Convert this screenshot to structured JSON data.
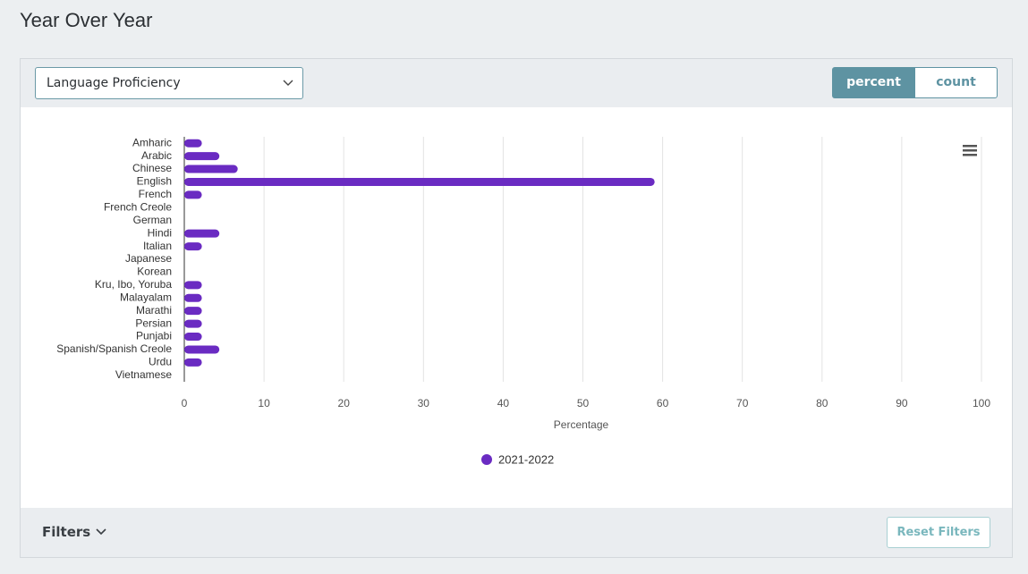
{
  "page": {
    "title": "Year Over Year",
    "dropdown": "Language Proficiency",
    "toggle": [
      "percent",
      "count"
    ],
    "filters": "Filters",
    "reset": "Reset Filters"
  },
  "chart_data": {
    "type": "bar",
    "orientation": "horizontal",
    "x_label": "Percentage",
    "categories": [
      "Amharic",
      "Arabic",
      "Chinese",
      "English",
      "French",
      "French Creole",
      "German",
      "Hindi",
      "Italian",
      "Japanese",
      "Korean",
      "Kru, Ibo, Yoruba",
      "Malayalam",
      "Marathi",
      "Persian",
      "Punjabi",
      "Spanish/Spanish Creole",
      "Urdu",
      "Vietnamese"
    ],
    "series": [
      {
        "name": "2021-2022",
        "color": "#6a2bc2",
        "values": [
          2.2,
          4.4,
          6.7,
          59,
          2.2,
          0,
          0,
          4.4,
          2.2,
          0,
          0,
          2.2,
          2.2,
          2.2,
          2.2,
          2.2,
          4.4,
          2.2,
          0
        ]
      }
    ],
    "xlim": [
      0,
      100
    ],
    "xticks": [
      0,
      10,
      20,
      30,
      40,
      50,
      60,
      70,
      80,
      90,
      100
    ],
    "grid": true
  }
}
